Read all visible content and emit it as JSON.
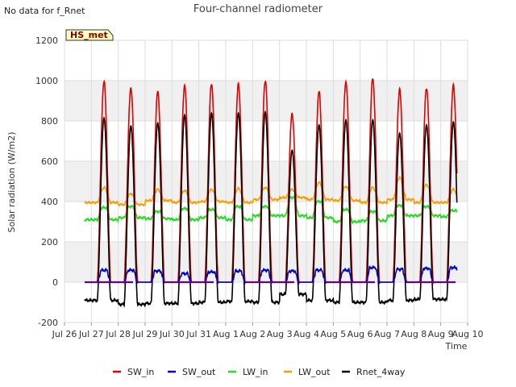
{
  "note": "No data for f_Rnet",
  "chart_data": {
    "type": "line",
    "title": "Four-channel radiometer",
    "xlabel": "Time",
    "ylabel": "Solar radiation (W/m2)",
    "site_badge": "HS_met",
    "ylim": [
      -200,
      1200
    ],
    "yticks": [
      -200,
      0,
      200,
      400,
      600,
      800,
      1000,
      1200
    ],
    "xlim_days": [
      0,
      15
    ],
    "xtick_labels": [
      "Jul 26",
      "Jul 27",
      "Jul 28",
      "Jul 29",
      "Jul 30",
      "Jul 31",
      "Aug 1",
      "Aug 2",
      "Aug 3",
      "Aug 4",
      "Aug 5",
      "Aug 6",
      "Aug 7",
      "Aug 8",
      "Aug 9",
      "Aug 10"
    ],
    "data_start_day": 0.75,
    "data_end_day": 14.6,
    "grid": true,
    "legend_position": "bottom",
    "daily_peaks": {
      "days": [
        "Jul 27",
        "Jul 28",
        "Jul 29",
        "Jul 30",
        "Jul 31",
        "Aug 1",
        "Aug 2",
        "Aug 3",
        "Aug 4",
        "Aug 5",
        "Aug 6",
        "Aug 7",
        "Aug 8",
        "Aug 9"
      ],
      "SW_in": [
        995,
        965,
        945,
        975,
        985,
        980,
        1000,
        835,
        945,
        995,
        1010,
        955,
        965,
        975
      ],
      "SW_out": [
        70,
        70,
        65,
        50,
        60,
        65,
        70,
        65,
        70,
        70,
        85,
        75,
        80,
        85
      ],
      "LW_in_day": [
        370,
        375,
        350,
        365,
        360,
        375,
        375,
        420,
        400,
        360,
        350,
        380,
        375,
        355
      ],
      "LW_in_night": [
        310,
        320,
        315,
        310,
        320,
        310,
        330,
        330,
        320,
        300,
        305,
        330,
        330,
        325
      ],
      "LW_out_day": [
        470,
        440,
        460,
        455,
        460,
        465,
        470,
        460,
        495,
        475,
        470,
        520,
        485,
        460
      ],
      "LW_out_night": [
        395,
        385,
        405,
        395,
        400,
        395,
        410,
        420,
        410,
        405,
        395,
        410,
        395,
        395
      ],
      "Rnet_4way": [
        815,
        775,
        790,
        830,
        840,
        840,
        845,
        655,
        780,
        805,
        805,
        740,
        780,
        795
      ],
      "Rnet_night": [
        -90,
        -110,
        -105,
        -105,
        -100,
        -95,
        -100,
        -60,
        -90,
        -100,
        -100,
        -90,
        -85,
        -85
      ]
    },
    "series": [
      {
        "name": "SW_in",
        "color": "#e00000"
      },
      {
        "name": "SW_out",
        "color": "#0000cc"
      },
      {
        "name": "LW_in",
        "color": "#22dd22"
      },
      {
        "name": "LW_out",
        "color": "#f5a000"
      },
      {
        "name": "Rnet_4way",
        "color": "#000000"
      }
    ]
  }
}
